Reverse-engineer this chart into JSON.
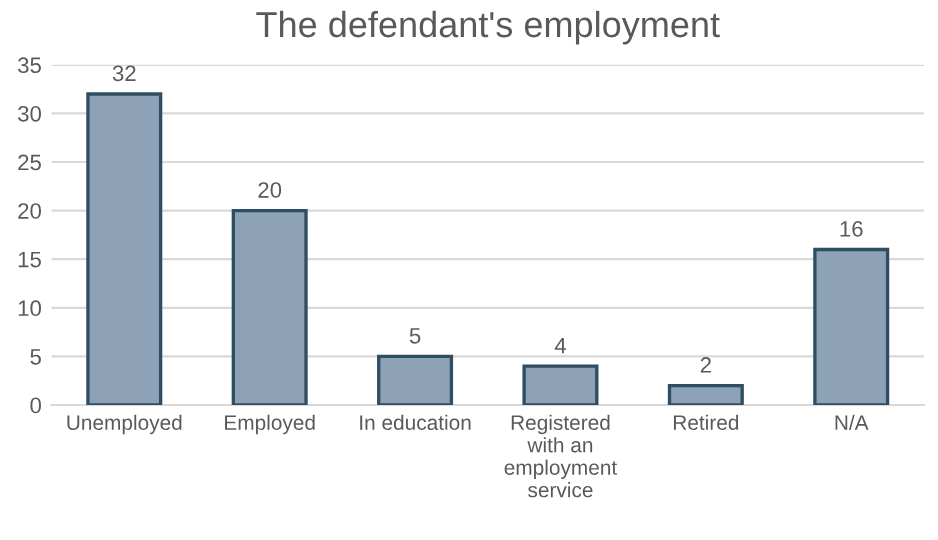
{
  "chart_data": {
    "type": "bar",
    "title": "The defendant's employment",
    "categories": [
      "Unemployed",
      "Employed",
      "In education",
      "Registered\nwith an\nemployment\nservice",
      "Retired",
      "N/A"
    ],
    "values": [
      32,
      20,
      5,
      4,
      2,
      16
    ],
    "color": "#8da2b6",
    "ylim": [
      0,
      35
    ],
    "yticks": [
      0,
      5,
      10,
      15,
      20,
      25,
      30,
      35
    ],
    "grid": "y",
    "data_labels": true,
    "legend": false
  }
}
